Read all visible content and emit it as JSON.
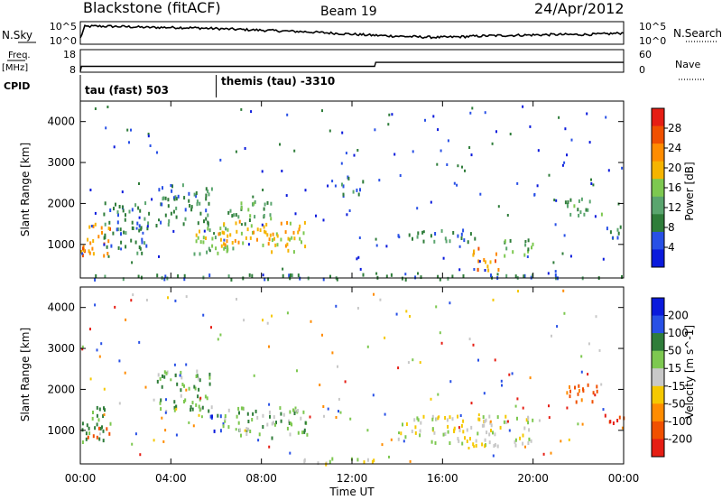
{
  "header": {
    "station": "Blackstone (fitACF)",
    "beam": "Beam 19",
    "date": "24/Apr/2012"
  },
  "side_labels": {
    "nsky": "N.Sky",
    "freq_top": "Freq.",
    "freq_unit": "[MHz]",
    "cpid": "CPID",
    "nsearch": "N.Search",
    "nave": "Nave"
  },
  "nsky_panel": {
    "left_ticks": [
      "10^5",
      "10^0"
    ],
    "right_ticks": [
      "10^5",
      "10^0"
    ]
  },
  "freq_panel": {
    "left_ticks": [
      "18",
      "8"
    ],
    "right_ticks": [
      "60",
      "0"
    ]
  },
  "cpid_panel": {
    "labels": [
      "tau (fast) 503",
      "themis (tau) -3310"
    ],
    "switch_hours": [
      6.0
    ]
  },
  "colors": {
    "power": [
      "#0a1adc",
      "#2850e6",
      "#2f7d3a",
      "#5aa56e",
      "#7dc850",
      "#f5b400",
      "#ff8c00",
      "#f05000",
      "#e61e14"
    ],
    "velocity": [
      "#e61e14",
      "#f05000",
      "#ff8c00",
      "#f5c800",
      "#c8c8c8",
      "#7dc850",
      "#2f7d3a",
      "#2850e6",
      "#0a1adc"
    ]
  },
  "chart_data": [
    {
      "type": "line",
      "title": "N.Sky",
      "ylabel": "N.Sky",
      "log_scale": true,
      "ylim_exponent": [
        0,
        5
      ],
      "x": [
        0,
        0.2,
        0.5,
        1,
        2,
        3,
        4,
        5,
        6,
        7,
        8,
        9,
        10,
        11,
        12,
        13,
        14,
        15,
        16,
        17,
        18,
        19,
        20,
        21,
        22,
        23,
        24
      ],
      "values_exponent": [
        1.3,
        4.2,
        4.3,
        4.3,
        4.2,
        4.0,
        4.0,
        3.9,
        3.7,
        3.5,
        3.3,
        3.1,
        2.9,
        2.6,
        2.3,
        2.0,
        1.8,
        1.6,
        1.5,
        1.7,
        1.9,
        2.0,
        2.1,
        2.2,
        2.2,
        2.3,
        2.6
      ]
    },
    {
      "type": "line",
      "title": "Freq.",
      "ylabel": "[MHz]",
      "ylim": [
        8,
        18
      ],
      "x": [
        0,
        0.05,
        13.0,
        13.05,
        24
      ],
      "values": [
        8,
        10.5,
        10.5,
        12.5,
        12.5
      ],
      "secondary_label": "Nave",
      "secondary_ylim": [
        0,
        60
      ]
    },
    {
      "type": "heatmap",
      "title": "Power",
      "xlabel": "Time UT",
      "ylabel": "Slant Range [km]",
      "xlim": [
        0,
        24
      ],
      "ylim": [
        180,
        4500
      ],
      "x_tick_labels": [
        "00:00",
        "04:00",
        "08:00",
        "12:00",
        "16:00",
        "20:00",
        "00:00"
      ],
      "y_tick_labels": [
        "1000",
        "2000",
        "3000",
        "4000"
      ],
      "colorbar_label": "Power [dB]",
      "colorbar_ticks": [
        "4",
        "8",
        "12",
        "16",
        "20",
        "24",
        "28"
      ],
      "scatter_regions": [
        {
          "t_start": 0.0,
          "t_end": 1.3,
          "r_low": 750,
          "r_high": 1600,
          "power_db": 22
        },
        {
          "t_start": 1.0,
          "t_end": 3.0,
          "r_low": 800,
          "r_high": 2100,
          "power_db": 6
        },
        {
          "t_start": 3.3,
          "t_end": 5.8,
          "r_low": 1500,
          "r_high": 2500,
          "power_db": 8
        },
        {
          "t_start": 5.0,
          "t_end": 7.0,
          "r_low": 800,
          "r_high": 1500,
          "power_db": 16
        },
        {
          "t_start": 6.0,
          "t_end": 10.0,
          "r_low": 850,
          "r_high": 1600,
          "power_db": 20
        },
        {
          "t_start": 6.5,
          "t_end": 8.5,
          "r_low": 1500,
          "r_high": 2100,
          "power_db": 10
        },
        {
          "t_start": 11.5,
          "t_end": 12.5,
          "r_low": 2200,
          "r_high": 2700,
          "power_db": 6
        },
        {
          "t_start": 14.0,
          "t_end": 17.5,
          "r_low": 1100,
          "r_high": 1400,
          "power_db": 9
        },
        {
          "t_start": 17.3,
          "t_end": 18.5,
          "r_low": 400,
          "r_high": 1000,
          "power_db": 24
        },
        {
          "t_start": 18.5,
          "t_end": 20.0,
          "r_low": 750,
          "r_high": 1150,
          "power_db": 12
        },
        {
          "t_start": 21.3,
          "t_end": 23.0,
          "r_low": 1700,
          "r_high": 2150,
          "power_db": 12
        },
        {
          "t_start": 23.0,
          "t_end": 24.0,
          "r_low": 1200,
          "r_high": 1500,
          "power_db": 6
        },
        {
          "t_start": 0.5,
          "t_end": 24.0,
          "r_low": 180,
          "r_high": 300,
          "power_db": 8
        }
      ]
    },
    {
      "type": "heatmap",
      "title": "Velocity",
      "xlabel": "Time UT",
      "ylabel": "Slant Range [km]",
      "xlim": [
        0,
        24
      ],
      "ylim": [
        180,
        4500
      ],
      "x_tick_labels": [
        "00:00",
        "04:00",
        "08:00",
        "12:00",
        "16:00",
        "20:00",
        "00:00"
      ],
      "y_tick_labels": [
        "1000",
        "2000",
        "3000",
        "4000"
      ],
      "colorbar_label": "Velocity [m s^-1]",
      "colorbar_ticks": [
        "200",
        "100",
        "50",
        "15",
        "-15",
        "-50",
        "-100",
        "-200"
      ],
      "scatter_regions": [
        {
          "t_start": 0.0,
          "t_end": 1.3,
          "r_low": 750,
          "r_high": 1600,
          "velocity": 60
        },
        {
          "t_start": 0.3,
          "t_end": 1.4,
          "r_low": 850,
          "r_high": 1100,
          "velocity": -180
        },
        {
          "t_start": 3.3,
          "t_end": 5.8,
          "r_low": 1500,
          "r_high": 2500,
          "velocity": 40
        },
        {
          "t_start": 5.7,
          "t_end": 6.3,
          "r_low": 900,
          "r_high": 1400,
          "velocity": 200
        },
        {
          "t_start": 6.0,
          "t_end": 10.0,
          "r_low": 850,
          "r_high": 1600,
          "velocity": 30
        },
        {
          "t_start": 9.5,
          "t_end": 13.0,
          "r_low": 180,
          "r_high": 350,
          "velocity": 0
        },
        {
          "t_start": 14.0,
          "t_end": 20.0,
          "r_low": 650,
          "r_high": 1400,
          "velocity": 0
        },
        {
          "t_start": 21.3,
          "t_end": 23.0,
          "r_low": 1700,
          "r_high": 2150,
          "velocity": -120
        },
        {
          "t_start": 23.0,
          "t_end": 24.0,
          "r_low": 1200,
          "r_high": 1500,
          "velocity": -200
        }
      ]
    }
  ]
}
